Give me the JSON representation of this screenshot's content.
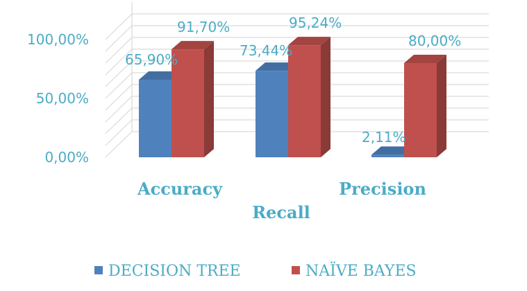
{
  "chart_data": {
    "type": "bar",
    "style": "3d-clustered-column",
    "categories": [
      "Accuracy",
      "Recall",
      "Precision"
    ],
    "series": [
      {
        "name": "DECISION TREE",
        "color": "#4f81bd",
        "values": [
          65.9,
          73.44,
          2.11
        ],
        "labels": [
          "65,90%",
          "73,44%",
          "2,11%"
        ]
      },
      {
        "name": "NAÏVE BAYES",
        "color": "#c0504d",
        "values": [
          91.7,
          95.24,
          80.0
        ],
        "labels": [
          "91,70%",
          "95,24%",
          "80,00%"
        ]
      }
    ],
    "y_ticks": [
      {
        "value": 0,
        "label": "0,00%"
      },
      {
        "value": 50,
        "label": "50,00%"
      },
      {
        "value": 100,
        "label": "100,00%"
      }
    ],
    "ylim": [
      0,
      110
    ],
    "grid": true,
    "legend_position": "bottom"
  }
}
